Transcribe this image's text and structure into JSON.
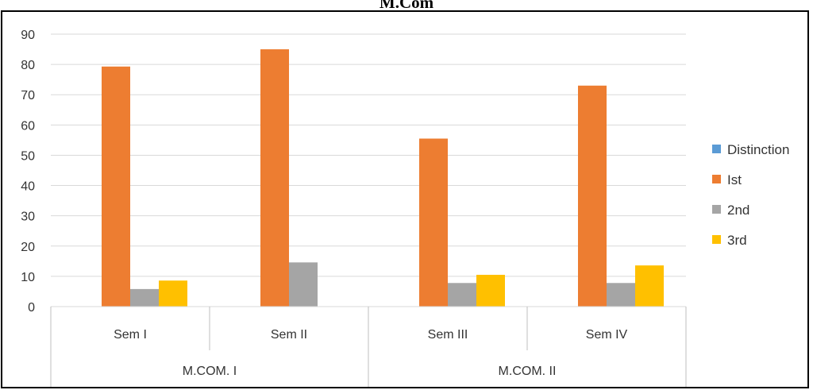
{
  "chart_data": {
    "type": "bar",
    "title": "M.Com",
    "xlabel": "",
    "ylabel": "",
    "ylim": [
      0,
      90
    ],
    "yticks": [
      0,
      10,
      20,
      30,
      40,
      50,
      60,
      70,
      80,
      90
    ],
    "grid": true,
    "legend_position": "right",
    "categories": [
      "Sem I",
      "Sem II",
      "Sem III",
      "Sem IV"
    ],
    "groups": [
      {
        "label": "M.COM. I",
        "categories": [
          "Sem I",
          "Sem II"
        ]
      },
      {
        "label": "M.COM. II",
        "categories": [
          "Sem III",
          "Sem IV"
        ]
      }
    ],
    "series": [
      {
        "name": "Distinction",
        "color": "#5B9BD5",
        "values": [
          0,
          0,
          0,
          0
        ]
      },
      {
        "name": "Ist",
        "color": "#ED7D31",
        "values": [
          79.3,
          85,
          55.5,
          73
        ]
      },
      {
        "name": "2nd",
        "color": "#A5A5A5",
        "values": [
          5.8,
          14.6,
          7.8,
          7.8
        ]
      },
      {
        "name": "3rd",
        "color": "#FFC000",
        "values": [
          8.6,
          0,
          10.5,
          13.6
        ]
      }
    ]
  }
}
